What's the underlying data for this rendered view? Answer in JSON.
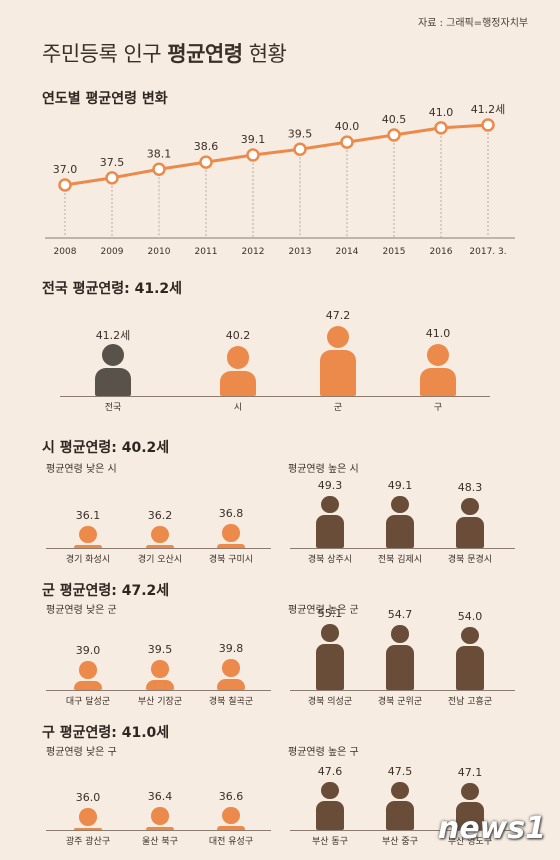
{
  "source": "자료 : 그래픽=행정자치부",
  "title_normal": "주민등록 인구 ",
  "title_bold": "평균연령",
  "title_tail": " 현황",
  "logo": "news1",
  "chart_data": [
    {
      "type": "line",
      "title": "연도별 평균연령 변화",
      "categories": [
        "2008",
        "2009",
        "2010",
        "2011",
        "2012",
        "2013",
        "2014",
        "2015",
        "2016",
        "2017. 3."
      ],
      "values": [
        37.0,
        37.5,
        38.1,
        38.6,
        39.1,
        39.5,
        40.0,
        40.5,
        41.0,
        41.2
      ],
      "labels": [
        "37.0",
        "37.5",
        "38.1",
        "38.6",
        "39.1",
        "39.5",
        "40.0",
        "40.5",
        "41.0",
        "41.2세"
      ],
      "color": "#ec8a4c"
    },
    {
      "type": "bar",
      "title": "전국 평균연령: 41.2세",
      "categories": [
        "전국",
        "시",
        "군",
        "구"
      ],
      "values": [
        41.2,
        40.2,
        47.2,
        41.0
      ],
      "labels": [
        "41.2세",
        "40.2",
        "47.2",
        "41.0"
      ],
      "colors": [
        "#58524a",
        "#ec8a4c",
        "#ec8a4c",
        "#ec8a4c"
      ]
    },
    {
      "type": "bar",
      "title": "시 평균연령: 40.2세",
      "low_label": "평균연령 낮은 시",
      "high_label": "평균연령 높은 시",
      "categories": [
        "경기 화성시",
        "경기 오산시",
        "경북 구미시",
        "경북 상주시",
        "전북 김제시",
        "경북 문경시"
      ],
      "values": [
        36.1,
        36.2,
        36.8,
        49.3,
        49.1,
        48.3
      ],
      "labels": [
        "36.1",
        "36.2",
        "36.8",
        "49.3",
        "49.1",
        "48.3"
      ]
    },
    {
      "type": "bar",
      "title": "군 평균연령: 47.2세",
      "low_label": "평균연령 낮은 군",
      "high_label": "평균연령 높은 군",
      "categories": [
        "대구 달성군",
        "부산 기장군",
        "경북 칠곡군",
        "경북 의성군",
        "경북 군위군",
        "전남 고흥군"
      ],
      "values": [
        39.0,
        39.5,
        39.8,
        55.1,
        54.7,
        54.0
      ],
      "labels": [
        "39.0",
        "39.5",
        "39.8",
        "55.1",
        "54.7",
        "54.0"
      ]
    },
    {
      "type": "bar",
      "title": "구 평균연령: 41.0세",
      "low_label": "평균연령 낮은 구",
      "high_label": "평균연령 높은 구",
      "categories": [
        "광주 광산구",
        "울산 북구",
        "대전 유성구",
        "부산 동구",
        "부산 중구",
        "부산 영도구"
      ],
      "values": [
        36.0,
        36.4,
        36.6,
        47.6,
        47.5,
        47.1
      ],
      "labels": [
        "36.0",
        "36.4",
        "36.6",
        "47.6",
        "47.5",
        "47.1"
      ]
    }
  ],
  "colors": {
    "orange": "#ec8a4c",
    "brown": "#6a4d38",
    "dark": "#58524a",
    "background": "#f6ece2"
  }
}
